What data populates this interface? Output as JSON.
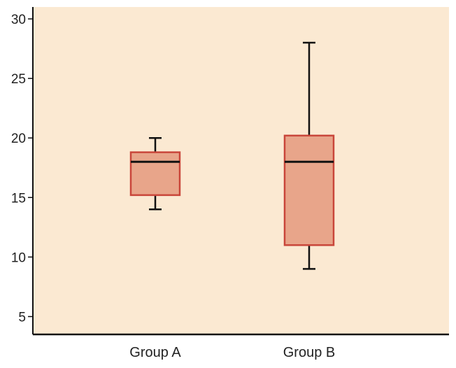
{
  "chart_data": {
    "type": "box",
    "title": "",
    "xlabel": "",
    "ylabel": "",
    "categories": [
      "Group A",
      "Group B"
    ],
    "boxes": [
      {
        "category": "Group A",
        "min": 14,
        "q1": 15.2,
        "median": 18,
        "q3": 18.8,
        "max": 20
      },
      {
        "category": "Group B",
        "min": 9,
        "q1": 11,
        "median": 18,
        "q3": 20.2,
        "max": 28
      }
    ],
    "ylim": [
      3.5,
      31
    ],
    "yticks": [
      5,
      10,
      15,
      20,
      25,
      30
    ],
    "grid": false,
    "legend": "none",
    "colors": {
      "plot_background": "#fbe9d2",
      "box_fill": "#e8a58a",
      "box_stroke": "#c9463a",
      "median": "#111111",
      "whisker": "#111111",
      "axis": "#111111"
    }
  }
}
